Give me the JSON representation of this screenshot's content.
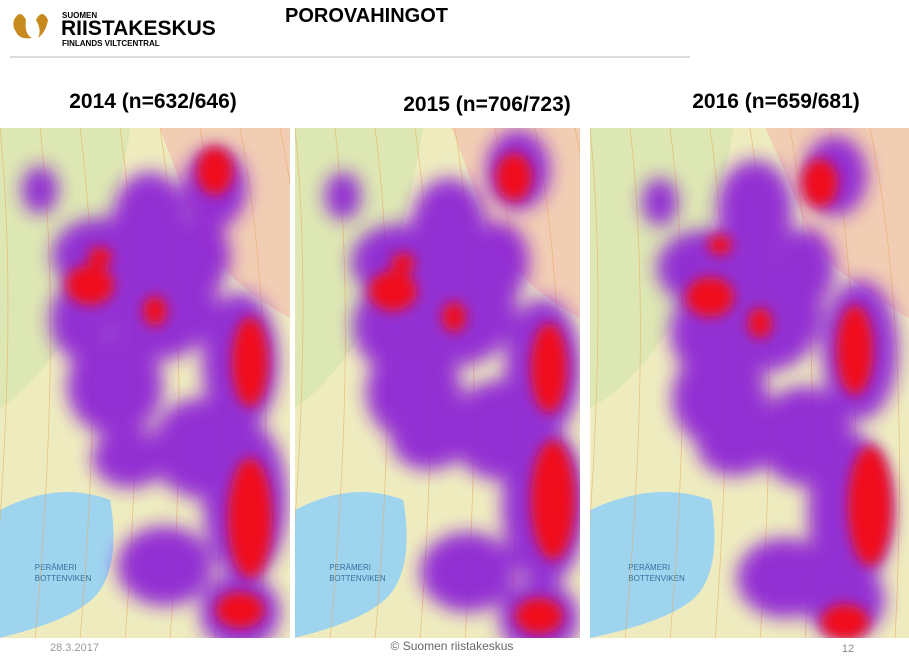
{
  "header": {
    "logo_top": "SUOMEN",
    "logo_main": "RIISTAKESKUS",
    "logo_sub": "FINLANDS VILTCENTRAL",
    "title": "POROVAHINGOT"
  },
  "panels": [
    {
      "title": "2014 (n=632/646)",
      "sea_fi": "PERÄMERI",
      "sea_sv": "BOTTENVIKEN"
    },
    {
      "title": "2015 (n=706/723)",
      "sea_fi": "PERÄMERI",
      "sea_sv": "BOTTENVIKEN"
    },
    {
      "title": "2016 (n=659/681)",
      "sea_fi": "PERÄMERI",
      "sea_sv": "BOTTENVIKEN"
    }
  ],
  "footer": {
    "date": "28.3.2017",
    "copyright": "© Suomen riistakeskus",
    "page": "12"
  }
}
